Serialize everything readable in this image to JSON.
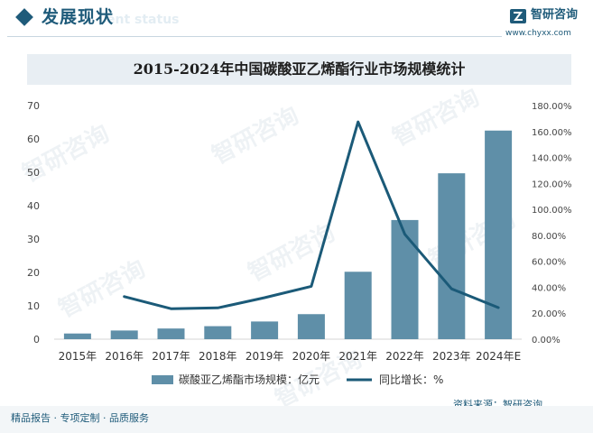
{
  "header": {
    "title": "发展现状",
    "subtitle": "ent status"
  },
  "brand": {
    "name": "智研咨询",
    "url": "www.chyxx.com"
  },
  "watermark": "智研咨询",
  "chart_data": {
    "type": "bar+line",
    "title": "2015-2024年中国碳酸亚乙烯酯行业市场规模统计",
    "categories": [
      "2015年",
      "2016年",
      "2017年",
      "2018年",
      "2019年",
      "2020年",
      "2021年",
      "2022年",
      "2023年",
      "2024年E"
    ],
    "series": [
      {
        "name": "碳酸亚乙烯酯市场规模：亿元",
        "type": "bar",
        "axis": "left",
        "color": "#5f8fa8",
        "values": [
          1.7,
          2.6,
          3.2,
          3.9,
          5.3,
          7.5,
          20.2,
          35.7,
          49.7,
          62.5
        ]
      },
      {
        "name": "同比增长：%",
        "type": "line",
        "axis": "right",
        "color": "#1b5a78",
        "values": [
          null,
          32.8,
          23.5,
          24.1,
          32.0,
          40.7,
          167.4,
          80.8,
          38.8,
          24.3
        ]
      }
    ],
    "y_left": {
      "min": 0,
      "max": 70,
      "ticks": [
        "0",
        "10",
        "20",
        "30",
        "40",
        "50",
        "60",
        "70"
      ]
    },
    "y_right": {
      "min": 0,
      "max": 180,
      "ticks": [
        "0.00%",
        "20.00%",
        "40.00%",
        "60.00%",
        "80.00%",
        "100.00%",
        "120.00%",
        "140.00%",
        "160.00%",
        "180.00%"
      ]
    },
    "grid": false,
    "legend_position": "bottom"
  },
  "footer": {
    "left": "精品报告 · 专项定制 · 品质服务",
    "source": "资料来源：智研咨询"
  }
}
